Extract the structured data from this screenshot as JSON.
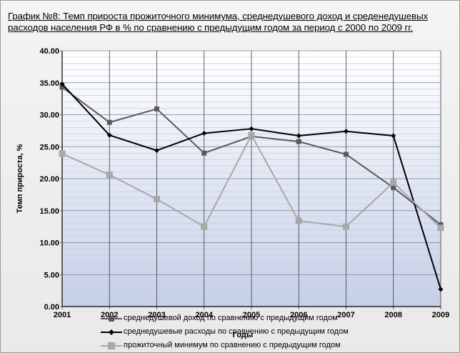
{
  "title": "График №8: Темп прироста прожиточного минимума, среднедушевого доход и среденедушевых расходов населения РФ  в % по сравнению с предыдущим годом за период с 2000 по 2009 гг.",
  "chart_data": {
    "type": "line",
    "title": "График №8: Темп прироста прожиточного минимума, среднедушевого доход и среденедушевых расходов населения РФ  в % по сравнению с предыдущим годом за период с 2000 по 2009 гг.",
    "xlabel": "Годы",
    "ylabel": "Темп прироста, %",
    "categories": [
      "2001",
      "2002",
      "2003",
      "2004",
      "2005",
      "2006",
      "2007",
      "2008",
      "2009"
    ],
    "y_ticks": [
      "0.00",
      "5.00",
      "10.00",
      "15.00",
      "20.00",
      "25.00",
      "30.00",
      "35.00",
      "40.00"
    ],
    "ylim": [
      0,
      40
    ],
    "grid": true,
    "legend_position": "bottom",
    "series": [
      {
        "name": "среднедушевой доход по сравнению с предыдущим годом",
        "color": "#5a5a5a",
        "marker": "square",
        "values": [
          34.3,
          28.8,
          30.9,
          24.0,
          26.6,
          25.8,
          23.8,
          18.6,
          12.8
        ]
      },
      {
        "name": "среднедушевые расходы по сравнению с предыдущим годом",
        "color": "#000000",
        "marker": "diamond",
        "values": [
          34.8,
          26.8,
          24.4,
          27.1,
          27.8,
          26.7,
          27.4,
          26.7,
          2.7
        ]
      },
      {
        "name": "прожиточный минимум по сравнению с предыдущим годом",
        "color": "#a8a8a8",
        "marker": "square",
        "values": [
          23.9,
          20.6,
          16.8,
          12.5,
          26.8,
          13.4,
          12.5,
          19.4,
          12.3
        ]
      }
    ]
  }
}
